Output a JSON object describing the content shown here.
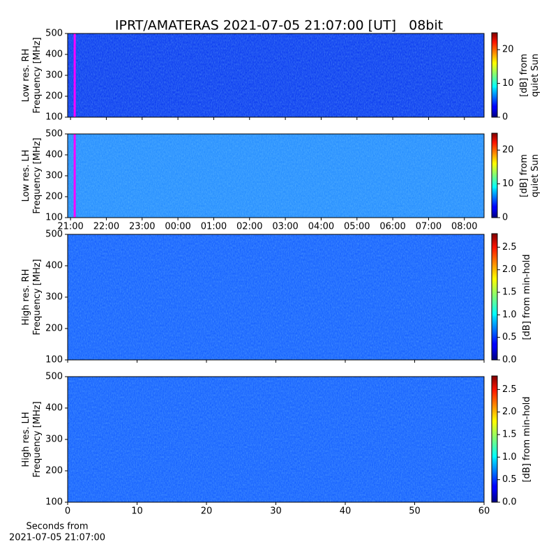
{
  "chart_data": [
    {
      "type": "spectrogram",
      "title": "IPRT/AMATERAS 2021-07-05 21:07:00 [UT]   08bit",
      "ylabel": [
        "Low res. RH",
        "Frequency [MHz]"
      ],
      "ylim": [
        100,
        500
      ],
      "yticks": [
        100,
        200,
        300,
        400,
        500
      ],
      "xlim": [
        20.92,
        32.55
      ],
      "cursor_x": 21.117,
      "cursor_color": "#ff00ff",
      "fill": "#1040f0",
      "colormap": "jet",
      "clim": [
        0,
        25
      ],
      "cticks": [
        0,
        10,
        20
      ],
      "clabel": [
        "[dB] from",
        "quiet Sun"
      ]
    },
    {
      "type": "spectrogram",
      "ylabel": [
        "Low res. LH",
        "Frequency [MHz]"
      ],
      "ylim": [
        100,
        500
      ],
      "yticks": [
        100,
        200,
        300,
        400,
        500
      ],
      "xlim": [
        20.92,
        32.55
      ],
      "xticks": [
        {
          "value": 21,
          "label": "21:00"
        },
        {
          "value": 22,
          "label": "22:00"
        },
        {
          "value": 23,
          "label": "23:00"
        },
        {
          "value": 24,
          "label": "00:00"
        },
        {
          "value": 25,
          "label": "01:00"
        },
        {
          "value": 26,
          "label": "02:00"
        },
        {
          "value": 27,
          "label": "03:00"
        },
        {
          "value": 28,
          "label": "04:00"
        },
        {
          "value": 29,
          "label": "05:00"
        },
        {
          "value": 30,
          "label": "06:00"
        },
        {
          "value": 31,
          "label": "07:00"
        },
        {
          "value": 32,
          "label": "08:00"
        }
      ],
      "cursor_x": 21.117,
      "cursor_color": "#ff00ff",
      "fill": "#2a90ff",
      "colormap": "jet",
      "clim": [
        0,
        25
      ],
      "cticks": [
        0,
        10,
        20
      ],
      "clabel": [
        "[dB] from",
        "quiet Sun"
      ]
    },
    {
      "type": "spectrogram",
      "ylabel": [
        "High res. RH",
        "Frequency [MHz]"
      ],
      "ylim": [
        100,
        500
      ],
      "yticks": [
        100,
        200,
        300,
        400,
        500
      ],
      "xlim": [
        0,
        60
      ],
      "fill": "#1a64ff",
      "colormap": "jet",
      "clim": [
        0,
        2.8
      ],
      "cticks": [
        {
          "value": 0,
          "label": "0.0"
        },
        0.5,
        {
          "value": 1,
          "label": "1.0"
        },
        1.5,
        {
          "value": 2,
          "label": "2.0"
        },
        2.5
      ],
      "clabel": [
        "[dB] from min-hold"
      ]
    },
    {
      "type": "spectrogram",
      "ylabel": [
        "High res. LH",
        "Frequency [MHz]"
      ],
      "ylim": [
        100,
        500
      ],
      "yticks": [
        100,
        200,
        300,
        400,
        500
      ],
      "xlim": [
        0,
        60
      ],
      "xticks": [
        0,
        10,
        20,
        30,
        40,
        50,
        60
      ],
      "xlabel": [
        "Seconds from",
        "2021-07-05 21:07:00"
      ],
      "fill": "#1a64ff",
      "colormap": "jet",
      "clim": [
        0,
        2.8
      ],
      "cticks": [
        {
          "value": 0,
          "label": "0.0"
        },
        0.5,
        {
          "value": 1,
          "label": "1.0"
        },
        1.5,
        {
          "value": 2,
          "label": "2.0"
        },
        2.5
      ],
      "clabel": [
        "[dB] from min-hold"
      ]
    }
  ]
}
